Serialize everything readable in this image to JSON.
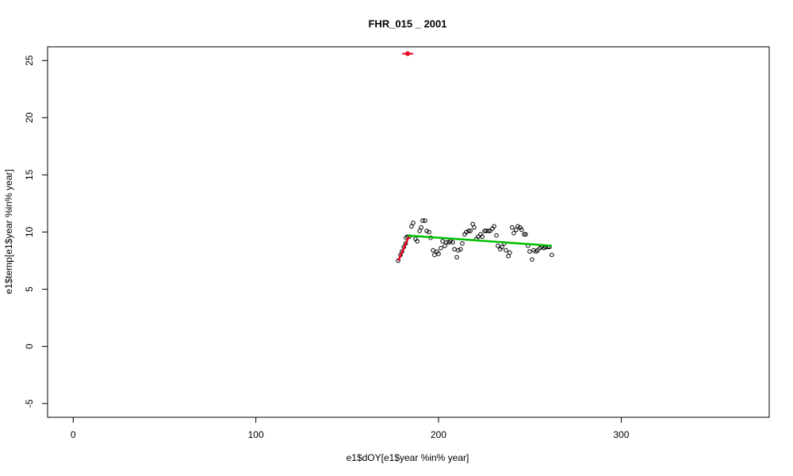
{
  "chart_data": {
    "type": "scatter",
    "title": "FHR_015 _ 2001",
    "x_label": "e1$dOY[e1$year %in% year]",
    "y_label": "e1$temp[e1$year %in% year]",
    "xlim": [
      -14,
      381
    ],
    "ylim": [
      -6.2,
      26.2
    ],
    "xticks": [
      0,
      100,
      200,
      300
    ],
    "yticks": [
      -5,
      0,
      5,
      10,
      15,
      20,
      25
    ],
    "series": [
      {
        "kind": "points",
        "color": "#000000",
        "x": [
          177.9,
          179.2,
          180,
          181,
          182,
          182.2,
          183,
          184,
          185.2,
          186.1,
          187.4,
          188.3,
          189.6,
          190.5,
          191.3,
          192.6,
          193.5,
          194.8,
          195.7,
          197,
          197.8,
          199.1,
          200,
          201.3,
          202.2,
          203.5,
          204.3,
          205.6,
          206.5,
          207.8,
          208.7,
          210,
          210.8,
          212.1,
          213,
          214.3,
          215.2,
          216.5,
          217.4,
          218.7,
          219.5,
          220.8,
          221.7,
          223,
          223.9,
          225.2,
          226,
          227.3,
          228.2,
          229.5,
          230.4,
          231.7,
          232.5,
          233.8,
          234.7,
          236,
          236.9,
          238.2,
          239,
          240.3,
          241.2,
          242.5,
          243.4,
          244.7,
          245.5,
          246.9,
          247.7,
          249,
          249.9,
          251.2,
          252.1,
          253.4,
          254.2,
          255.5,
          256.4,
          257.7,
          258.6,
          259.9,
          260.7,
          262
        ],
        "values": [
          7.5,
          8,
          8.3,
          8.7,
          9,
          9.5,
          9.6,
          9.6,
          10.5,
          10.8,
          9.4,
          9.2,
          10.1,
          10.4,
          11,
          11,
          10.1,
          10,
          9.5,
          8.4,
          8,
          8.3,
          8.1,
          8.6,
          9.2,
          8.8,
          9.1,
          9.1,
          9.2,
          9.1,
          8.5,
          7.8,
          8.4,
          8.5,
          9,
          9.8,
          10,
          10.1,
          10.1,
          10.7,
          10.4,
          9.4,
          9.6,
          9.8,
          9.6,
          10.1,
          10.1,
          10.1,
          10.1,
          10.3,
          10.5,
          9.7,
          8.8,
          8.5,
          8.7,
          9,
          8.4,
          7.9,
          8.2,
          10.4,
          9.9,
          10.2,
          10.5,
          10.4,
          10.2,
          9.8,
          9.8,
          8.8,
          8.3,
          7.6,
          8.4,
          8.3,
          8.4,
          8.6,
          8.7,
          8.6,
          8.7,
          8.7,
          8.7,
          8
        ]
      },
      {
        "kind": "line",
        "color": "#e8001c",
        "x": [
          178,
          184
        ],
        "values": [
          7.5,
          9.7
        ]
      },
      {
        "kind": "line",
        "color": "#00bf00",
        "x": [
          183,
          262
        ],
        "values": [
          9.7,
          8.8
        ]
      },
      {
        "kind": "errorpoint",
        "color": "#e8001c",
        "x": [
          183.1
        ],
        "values": [
          25.6
        ],
        "xerr": [
          3
        ]
      }
    ]
  }
}
